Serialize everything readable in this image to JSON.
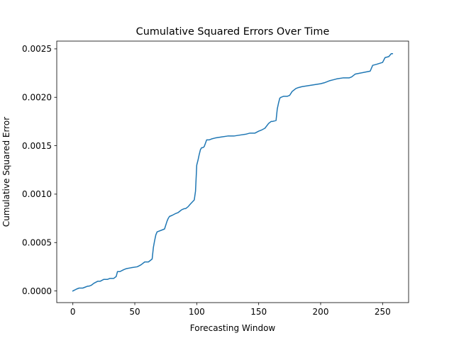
{
  "chart_data": {
    "type": "line",
    "title": "Cumulative Squared Errors Over Time",
    "xlabel": "Forecasting Window",
    "ylabel": "Cumulative Squared Error",
    "xlim": [
      -13,
      271
    ],
    "ylim": [
      -0.00012,
      0.00258
    ],
    "grid": false,
    "legend": "none",
    "xticks": [
      {
        "value": 0,
        "label": "0"
      },
      {
        "value": 50,
        "label": "50"
      },
      {
        "value": 100,
        "label": "100"
      },
      {
        "value": 150,
        "label": "150"
      },
      {
        "value": 200,
        "label": "200"
      },
      {
        "value": 250,
        "label": "250"
      }
    ],
    "yticks": [
      {
        "value": 0.0,
        "label": "0.0000"
      },
      {
        "value": 0.0005,
        "label": "0.0005"
      },
      {
        "value": 0.001,
        "label": "0.0010"
      },
      {
        "value": 0.0015,
        "label": "0.0015"
      },
      {
        "value": 0.002,
        "label": "0.0020"
      },
      {
        "value": 0.0025,
        "label": "0.0025"
      }
    ],
    "series": [
      {
        "name": "Cumulative Squared Error",
        "color": "#1f77b4",
        "x": [
          0,
          3,
          5,
          8,
          10,
          12,
          13,
          15,
          17,
          20,
          22,
          25,
          28,
          30,
          33,
          35,
          36,
          38,
          41,
          43,
          47,
          52,
          55,
          58,
          61,
          63,
          64,
          65,
          66,
          67,
          68,
          72,
          74,
          76,
          77,
          78,
          80,
          83,
          85,
          88,
          90,
          91,
          93,
          95,
          98,
          99,
          100,
          101,
          102,
          103,
          104,
          105,
          106,
          108,
          109,
          110,
          112,
          115,
          120,
          125,
          130,
          135,
          140,
          143,
          147,
          150,
          152,
          155,
          158,
          160,
          161,
          164,
          165,
          166,
          167,
          168,
          170,
          173,
          175,
          177,
          180,
          182,
          185,
          190,
          195,
          200,
          203,
          207,
          210,
          213,
          218,
          220,
          223,
          225,
          228,
          232,
          236,
          240,
          242,
          245,
          250,
          252,
          255,
          257,
          258
        ],
        "y": [
          0.0,
          2e-05,
          3e-05,
          3e-05,
          4e-05,
          5e-05,
          5e-05,
          6e-05,
          8e-05,
          0.0001,
          0.0001,
          0.00012,
          0.00012,
          0.00013,
          0.00013,
          0.00015,
          0.0002,
          0.0002,
          0.00022,
          0.00023,
          0.00024,
          0.00025,
          0.00027,
          0.0003,
          0.0003,
          0.00032,
          0.00033,
          0.00045,
          0.00052,
          0.00058,
          0.00061,
          0.00063,
          0.00064,
          0.00072,
          0.00075,
          0.00077,
          0.00078,
          0.0008,
          0.00081,
          0.00084,
          0.00085,
          0.00085,
          0.00087,
          0.0009,
          0.00094,
          0.00103,
          0.0013,
          0.00135,
          0.00141,
          0.00146,
          0.00148,
          0.00148,
          0.00149,
          0.00156,
          0.00156,
          0.00156,
          0.00157,
          0.00158,
          0.00159,
          0.0016,
          0.0016,
          0.00161,
          0.00162,
          0.00163,
          0.00163,
          0.00165,
          0.00166,
          0.00168,
          0.00173,
          0.00175,
          0.00175,
          0.00176,
          0.00188,
          0.00194,
          0.00199,
          0.002,
          0.00201,
          0.00201,
          0.00202,
          0.00206,
          0.00209,
          0.0021,
          0.00211,
          0.00212,
          0.00213,
          0.00214,
          0.00215,
          0.00217,
          0.00218,
          0.00219,
          0.0022,
          0.0022,
          0.0022,
          0.00221,
          0.00224,
          0.00225,
          0.00226,
          0.00227,
          0.00233,
          0.00234,
          0.00236,
          0.00241,
          0.00242,
          0.00245,
          0.00245
        ]
      }
    ]
  }
}
